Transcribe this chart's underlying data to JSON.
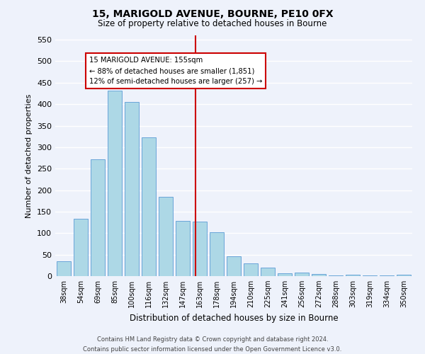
{
  "title": "15, MARIGOLD AVENUE, BOURNE, PE10 0FX",
  "subtitle": "Size of property relative to detached houses in Bourne",
  "xlabel": "Distribution of detached houses by size in Bourne",
  "ylabel": "Number of detached properties",
  "bar_labels": [
    "38sqm",
    "54sqm",
    "69sqm",
    "85sqm",
    "100sqm",
    "116sqm",
    "132sqm",
    "147sqm",
    "163sqm",
    "178sqm",
    "194sqm",
    "210sqm",
    "225sqm",
    "241sqm",
    "256sqm",
    "272sqm",
    "288sqm",
    "303sqm",
    "319sqm",
    "334sqm",
    "350sqm"
  ],
  "bar_values": [
    35,
    133,
    272,
    432,
    405,
    323,
    184,
    128,
    127,
    102,
    46,
    30,
    20,
    7,
    8,
    5,
    2,
    3,
    2,
    1,
    4
  ],
  "bar_color": "#add8e6",
  "bar_edge_color": "#5b9bd5",
  "vline_x_index": 7.75,
  "annotation_title": "15 MARIGOLD AVENUE: 155sqm",
  "annotation_line1": "← 88% of detached houses are smaller (1,851)",
  "annotation_line2": "12% of semi-detached houses are larger (257) →",
  "annotation_box_color": "#ffffff",
  "annotation_box_edge": "#cc0000",
  "vline_color": "#cc0000",
  "ylim": [
    0,
    560
  ],
  "yticks": [
    0,
    50,
    100,
    150,
    200,
    250,
    300,
    350,
    400,
    450,
    500,
    550
  ],
  "footer_line1": "Contains HM Land Registry data © Crown copyright and database right 2024.",
  "footer_line2": "Contains public sector information licensed under the Open Government Licence v3.0.",
  "bg_color": "#eef2fb"
}
